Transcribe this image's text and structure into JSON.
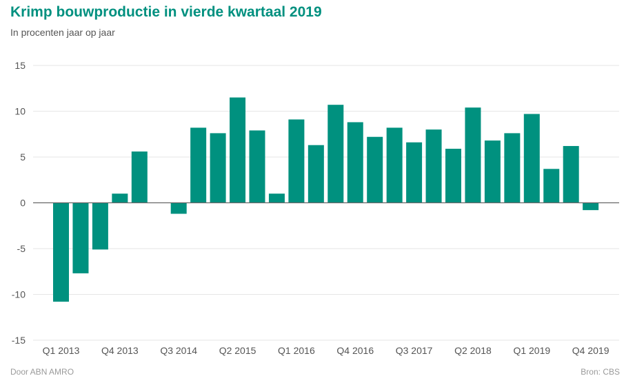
{
  "header": {
    "title": "Krimp bouwproductie in vierde kwartaal 2019",
    "subtitle": "In procenten jaar op jaar"
  },
  "footer": {
    "credit": "Door ABN AMRO",
    "source": "Bron: CBS"
  },
  "colors": {
    "title": "#00907f",
    "bar": "#00917f",
    "grid": "#e6e6e6",
    "zero_line": "#666666"
  },
  "chart_data": {
    "type": "bar",
    "title": "Krimp bouwproductie in vierde kwartaal 2019",
    "subtitle": "In procenten jaar op jaar",
    "xlabel": "",
    "ylabel": "",
    "ylim": [
      -15,
      15
    ],
    "yticks": [
      15,
      10,
      5,
      0,
      -5,
      -10,
      -15
    ],
    "grid": true,
    "categories": [
      "Q1 2013",
      "Q2 2013",
      "Q3 2013",
      "Q4 2013",
      "Q1 2014",
      "Q2 2014",
      "Q3 2014",
      "Q4 2014",
      "Q1 2015",
      "Q2 2015",
      "Q3 2015",
      "Q4 2015",
      "Q1 2016",
      "Q2 2016",
      "Q3 2016",
      "Q4 2016",
      "Q1 2017",
      "Q2 2017",
      "Q3 2017",
      "Q4 2017",
      "Q1 2018",
      "Q2 2018",
      "Q3 2018",
      "Q4 2018",
      "Q1 2019",
      "Q2 2019",
      "Q3 2019",
      "Q4 2019"
    ],
    "xtick_labels": [
      "Q1 2013",
      "Q4 2013",
      "Q3 2014",
      "Q2 2015",
      "Q1 2016",
      "Q4 2016",
      "Q3 2017",
      "Q2 2018",
      "Q1 2019",
      "Q4 2019"
    ],
    "values": [
      -10.8,
      -7.7,
      -5.1,
      1.0,
      5.6,
      0.0,
      -1.2,
      8.2,
      7.6,
      11.5,
      7.9,
      1.0,
      9.1,
      6.3,
      10.7,
      8.8,
      7.2,
      8.2,
      6.6,
      8.0,
      5.9,
      10.4,
      6.8,
      7.6,
      9.7,
      3.7,
      6.2,
      -0.8
    ]
  }
}
